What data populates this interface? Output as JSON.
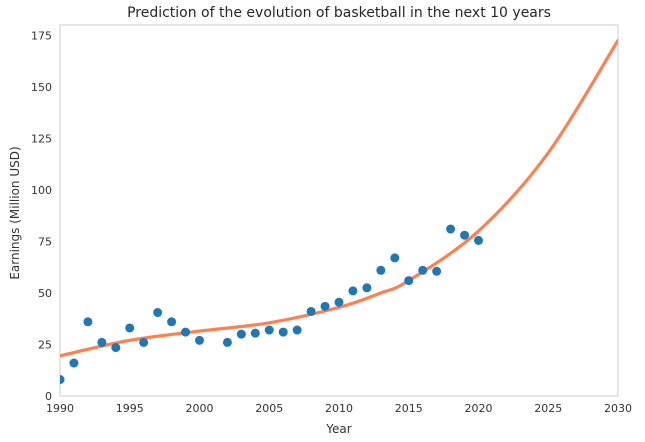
{
  "chart_data": {
    "type": "scatter",
    "title": "Prediction of the evolution of basketball in the next 10 years",
    "xlabel": "Year",
    "ylabel": "Earnings (Million USD)",
    "xlim": [
      1990,
      2030
    ],
    "ylim": [
      0,
      180
    ],
    "xticks": [
      1990,
      1995,
      2000,
      2005,
      2010,
      2015,
      2020,
      2025,
      2030
    ],
    "yticks": [
      0,
      25,
      50,
      75,
      100,
      125,
      150,
      175
    ],
    "grid": false,
    "legend": "none",
    "colors": {
      "points": "#1f77b4",
      "curve": "#ff7f50",
      "frame": "#cccccc"
    },
    "series": [
      {
        "type": "scatter",
        "x": [
          1990,
          1991,
          1992,
          1993,
          1994,
          1995,
          1996,
          1997,
          1998,
          1999,
          2000,
          2002,
          2003,
          2004,
          2005,
          2006,
          2007,
          2008,
          2009,
          2010,
          2011,
          2012,
          2013,
          2014,
          2015,
          2016,
          2017,
          2018,
          2019,
          2020
        ],
        "y": [
          8,
          16,
          36,
          26,
          23.5,
          33,
          26,
          40.5,
          36,
          31,
          27,
          26,
          30,
          30.5,
          32,
          31,
          32,
          41,
          43.5,
          45.5,
          51,
          52.5,
          61,
          67,
          56,
          61,
          60.5,
          81,
          78,
          75.5
        ]
      },
      {
        "type": "line",
        "x": [
          1990,
          1995,
          2000,
          2005,
          2010,
          2013,
          2015,
          2020,
          2025,
          2030
        ],
        "y": [
          19.5,
          27,
          31.5,
          35.5,
          43,
          50,
          56,
          80,
          118,
          172.5
        ]
      }
    ]
  }
}
